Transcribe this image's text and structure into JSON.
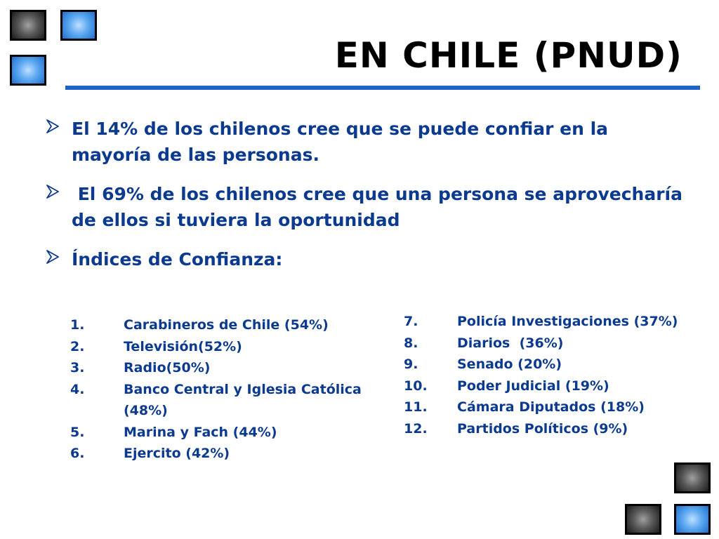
{
  "title": "EN CHILE (PNUD)",
  "bullets": [
    {
      "text": "El 14% de los chilenos cree que se puede confiar en la mayoría de las personas."
    },
    {
      "text": " El 69% de los chilenos cree que una persona se aprovecharía de ellos si tuviera la oportunidad"
    },
    {
      "text": "Índices de Confianza:"
    }
  ],
  "list_left": [
    {
      "num": "1.",
      "text": "Carabineros de Chile (54%)"
    },
    {
      "num": "2.",
      "text": "Televisión(52%)"
    },
    {
      "num": "3.",
      "text": "Radio(50%)"
    },
    {
      "num": "4.",
      "text": "Banco Central y Iglesia Católica (48%)"
    },
    {
      "num": "5.",
      "text": "Marina y Fach (44%)"
    },
    {
      "num": "6.",
      "text": "Ejercito (42%)"
    }
  ],
  "list_right": [
    {
      "num": "7.",
      "text": "Policía Investigaciones (37%)"
    },
    {
      "num": "8.",
      "text": "Diarios  (36%)"
    },
    {
      "num": "9.",
      "text": "Senado (20%)"
    },
    {
      "num": "10.",
      "text": "Poder Judicial (19%)"
    },
    {
      "num": "11.",
      "text": "Cámara Diputados (18%)"
    },
    {
      "num": "12.",
      "text": "Partidos Políticos (9%)"
    }
  ],
  "colors": {
    "text": "#0b3a8f",
    "accent": "#1d63c9",
    "title": "#000000"
  },
  "icons": {
    "bullet": "chevron-arrow-icon",
    "tiles": "decorative-square-tile"
  }
}
